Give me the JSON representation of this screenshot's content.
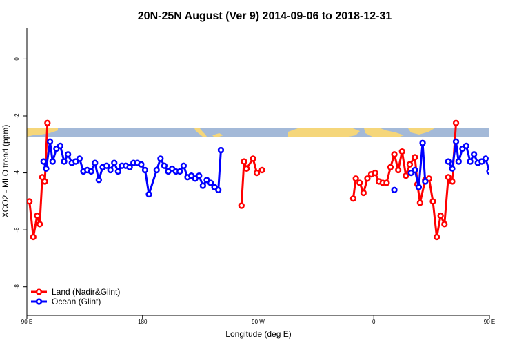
{
  "chart_data": {
    "type": "line",
    "title": "20N-25N August (Ver 9)   2014-09-06 to 2018-12-31",
    "xlabel": "Longitude (deg E)",
    "ylabel": "XCO2 - MLO trend (ppm)",
    "xlim": [
      90,
      450
    ],
    "ylim": [
      -9,
      1.1
    ],
    "xticks": [
      {
        "value": 90,
        "label": "90 E"
      },
      {
        "value": 180,
        "label": "180"
      },
      {
        "value": 270,
        "label": "90 W"
      },
      {
        "value": 360,
        "label": "0"
      },
      {
        "value": 450,
        "label": "90 E"
      },
      {
        "value": 540,
        "label": "180"
      }
    ],
    "yticks": [
      {
        "value": 0,
        "label": "0"
      },
      {
        "value": -2,
        "label": "-2"
      },
      {
        "value": -4,
        "label": "-4"
      },
      {
        "value": -6,
        "label": "-6"
      },
      {
        "value": -8,
        "label": "-8"
      }
    ],
    "map_strip": {
      "y_top": -2.5,
      "y_bottom": -2.8,
      "ocean_color": "#a3b9d8",
      "land_color": "#f5d67a"
    },
    "legend_position": "bottom-left",
    "series": [
      {
        "name": "Land (Nadir&Glint)",
        "color": "#ff0000",
        "segments": [
          [
            [
              92,
              -5
            ],
            [
              95,
              -6.25
            ],
            [
              98,
              -5.5
            ],
            [
              100,
              -5.8
            ],
            [
              102,
              -4.15
            ],
            [
              104,
              -4.3
            ],
            [
              106,
              -2.25
            ]
          ],
          [
            [
              257,
              -5.15
            ],
            [
              259,
              -3.6
            ],
            [
              261,
              -3.85
            ],
            [
              266,
              -3.5
            ],
            [
              269,
              -4
            ],
            [
              273,
              -3.9
            ]
          ],
          [
            [
              344,
              -4.9
            ],
            [
              346,
              -4.2
            ],
            [
              349,
              -4.35
            ],
            [
              352,
              -4.7
            ],
            [
              355,
              -4.2
            ],
            [
              358,
              -4.05
            ],
            [
              361,
              -4
            ],
            [
              364,
              -4.3
            ],
            [
              367,
              -4.35
            ],
            [
              370,
              -4.35
            ],
            [
              373,
              -3.8
            ],
            [
              376,
              -3.35
            ],
            [
              379,
              -3.9
            ],
            [
              382,
              -3.25
            ],
            [
              385,
              -4.1
            ],
            [
              388,
              -3.7
            ],
            [
              392,
              -3.45
            ],
            [
              394,
              -4.4
            ],
            [
              396,
              -5.05
            ],
            [
              400,
              -4.25
            ],
            [
              403,
              -4.2
            ],
            [
              406,
              -5
            ],
            [
              409,
              -6.25
            ],
            [
              412,
              -5.5
            ],
            [
              415,
              -5.8
            ],
            [
              418,
              -4.15
            ],
            [
              421,
              -4.3
            ],
            [
              424,
              -2.25
            ]
          ]
        ]
      },
      {
        "name": "Ocean (Glint)",
        "color": "#0000ff",
        "segments": [
          [
            [
              103,
              -3.6
            ],
            [
              105,
              -3.85
            ],
            [
              108,
              -2.9
            ],
            [
              110,
              -3.6
            ],
            [
              113,
              -3.15
            ],
            [
              116,
              -3.05
            ],
            [
              119,
              -3.6
            ],
            [
              122,
              -3.35
            ],
            [
              125,
              -3.65
            ],
            [
              128,
              -3.6
            ],
            [
              131,
              -3.5
            ],
            [
              134,
              -3.95
            ],
            [
              137,
              -3.9
            ],
            [
              140,
              -3.95
            ],
            [
              143,
              -3.65
            ],
            [
              146,
              -4.25
            ],
            [
              149,
              -3.8
            ],
            [
              152,
              -3.75
            ],
            [
              155,
              -3.9
            ],
            [
              158,
              -3.65
            ],
            [
              161,
              -3.95
            ],
            [
              164,
              -3.75
            ],
            [
              167,
              -3.75
            ],
            [
              170,
              -3.8
            ],
            [
              173,
              -3.65
            ],
            [
              176,
              -3.65
            ],
            [
              179,
              -3.7
            ],
            [
              182,
              -3.9
            ],
            [
              185,
              -4.75
            ],
            [
              191,
              -3.9
            ],
            [
              194,
              -3.5
            ],
            [
              197,
              -3.75
            ],
            [
              200,
              -3.95
            ],
            [
              203,
              -3.85
            ],
            [
              206,
              -3.95
            ],
            [
              209,
              -3.95
            ],
            [
              212,
              -3.75
            ],
            [
              215,
              -4.15
            ],
            [
              218,
              -4.1
            ],
            [
              221,
              -4.2
            ],
            [
              224,
              -4.1
            ],
            [
              227,
              -4.45
            ],
            [
              230,
              -4.25
            ],
            [
              233,
              -4.35
            ],
            [
              236,
              -4.5
            ],
            [
              239,
              -4.6
            ],
            [
              241,
              -3.2
            ]
          ],
          [
            [
              376,
              -4.6
            ]
          ],
          [
            [
              389,
              -4.0
            ],
            [
              392,
              -3.9
            ],
            [
              395,
              -4.5
            ],
            [
              398,
              -2.95
            ],
            [
              400,
              -4.3
            ]
          ],
          [
            [
              418,
              -3.6
            ],
            [
              421,
              -3.85
            ],
            [
              424,
              -2.9
            ],
            [
              426,
              -3.6
            ],
            [
              429,
              -3.15
            ],
            [
              432,
              -3.05
            ],
            [
              435,
              -3.6
            ],
            [
              438,
              -3.35
            ],
            [
              441,
              -3.65
            ],
            [
              444,
              -3.6
            ],
            [
              447,
              -3.5
            ],
            [
              450,
              -3.95
            ],
            [
              453,
              -3.9
            ],
            [
              456,
              -3.9
            ]
          ]
        ]
      }
    ]
  }
}
